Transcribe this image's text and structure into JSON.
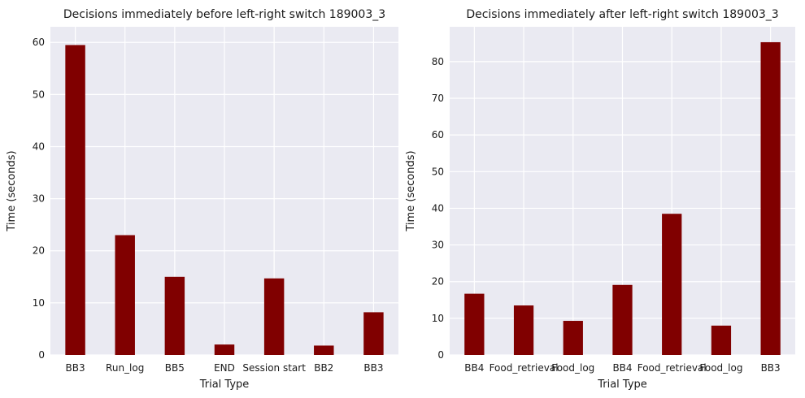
{
  "chart_data": [
    {
      "type": "bar",
      "title": "Decisions immediately before left-right switch 189003_3",
      "xlabel": "Trial Type",
      "ylabel": "Time (seconds)",
      "categories": [
        "BB3",
        "Run_log",
        "BB5",
        "END",
        "Session start",
        "BB2",
        "BB3"
      ],
      "values": [
        59.5,
        23.0,
        15.0,
        2.0,
        14.7,
        1.8,
        8.2
      ],
      "ylim": [
        0,
        63
      ],
      "yticks": [
        0,
        10,
        20,
        30,
        40,
        50,
        60
      ],
      "grid": true,
      "bar_color": "#800000",
      "background": "#eaeaf2"
    },
    {
      "type": "bar",
      "title": "Decisions immediately after left-right switch 189003_3",
      "xlabel": "Trial Type",
      "ylabel": "Time (seconds)",
      "categories": [
        "BB4",
        "Food_retrieval",
        "Food_log",
        "BB4",
        "Food_retrieval",
        "Food_log",
        "BB3"
      ],
      "values": [
        16.7,
        13.5,
        9.3,
        19.1,
        38.5,
        8.0,
        85.3
      ],
      "ylim": [
        0,
        89.5
      ],
      "yticks": [
        0,
        10,
        20,
        30,
        40,
        50,
        60,
        70,
        80
      ],
      "grid": true,
      "bar_color": "#800000",
      "background": "#eaeaf2"
    }
  ]
}
